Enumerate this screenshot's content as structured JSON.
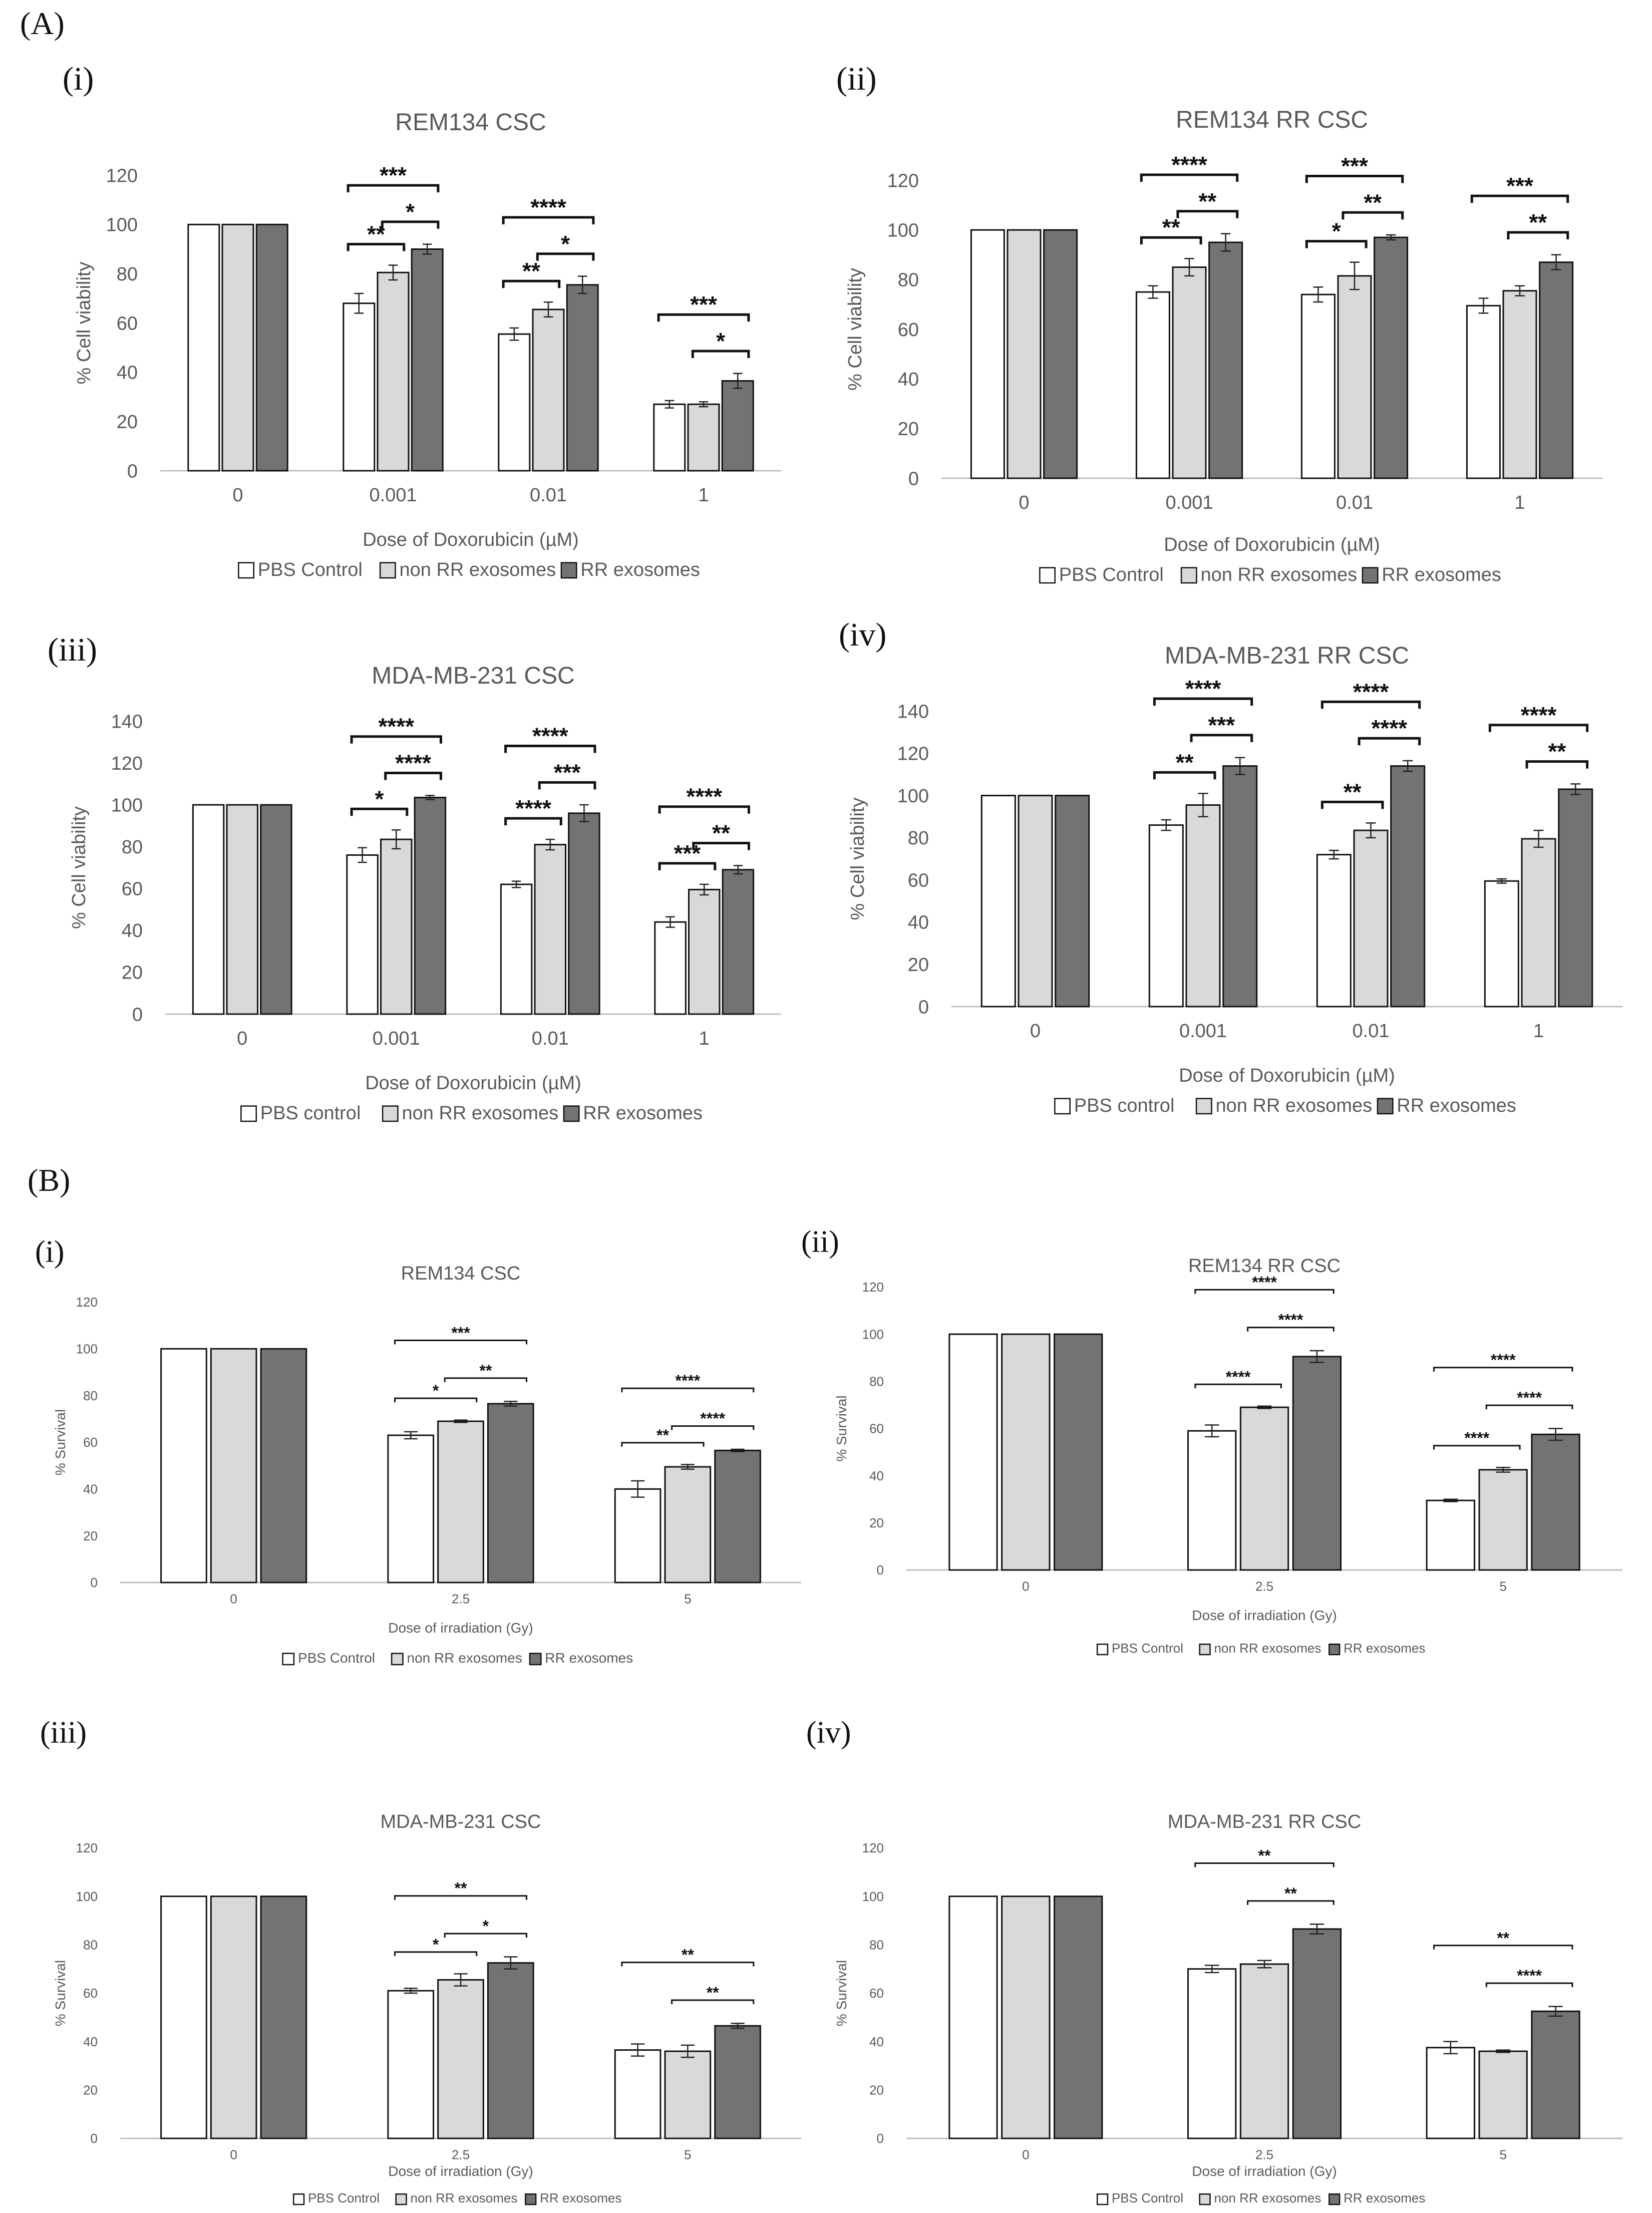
{
  "sections": [
    {
      "label": "(A)"
    },
    {
      "label": "(B)"
    }
  ],
  "colors": {
    "pbs": "#ffffff",
    "non_rr": "#d9d9d9",
    "rr": "#737373",
    "bar_stroke": "#111111",
    "axis": "#bfbfbf",
    "title": "#595959",
    "text": "#595959"
  },
  "chart_data": [
    {
      "panel": "(i)",
      "type": "bar",
      "title": "REM134 CSC",
      "xlabel": "Dose of Doxorubicin (µM)",
      "ylabel": "% Cell viability",
      "categories": [
        "0",
        "0.001",
        "0.01",
        "1"
      ],
      "ylim": [
        0,
        120
      ],
      "yticks": [
        0,
        20,
        40,
        60,
        80,
        100,
        120
      ],
      "series": [
        {
          "name": "PBS Control",
          "values": [
            100,
            68,
            55.5,
            27
          ],
          "errors": [
            0,
            4,
            2.5,
            1.5
          ]
        },
        {
          "name": "non RR exosomes",
          "values": [
            100,
            80.5,
            65.5,
            27
          ],
          "errors": [
            0,
            3,
            3,
            1
          ]
        },
        {
          "name": "RR exosomes",
          "values": [
            100,
            90,
            75.5,
            36.5
          ],
          "errors": [
            0,
            2,
            3.5,
            3
          ]
        }
      ],
      "significance": [
        {
          "category": 1,
          "from": 0,
          "to": 2,
          "label": "***"
        },
        {
          "category": 1,
          "from": 0,
          "to": 1,
          "label": "**"
        },
        {
          "category": 1,
          "from": 1,
          "to": 2,
          "label": "*"
        },
        {
          "category": 2,
          "from": 0,
          "to": 2,
          "label": "****"
        },
        {
          "category": 2,
          "from": 0,
          "to": 1,
          "label": "**"
        },
        {
          "category": 2,
          "from": 1,
          "to": 2,
          "label": "*"
        },
        {
          "category": 3,
          "from": 0,
          "to": 2,
          "label": "***"
        },
        {
          "category": 3,
          "from": 1,
          "to": 2,
          "label": "*"
        }
      ]
    },
    {
      "panel": "(ii)",
      "type": "bar",
      "title": "REM134 RR CSC",
      "xlabel": "Dose of Doxorubicin (µM)",
      "ylabel": "% Cell viability",
      "categories": [
        "0",
        "0.001",
        "0.01",
        "1"
      ],
      "ylim": [
        0,
        120
      ],
      "yticks": [
        0,
        20,
        40,
        60,
        80,
        100,
        120
      ],
      "series": [
        {
          "name": "PBS Control",
          "values": [
            100,
            75,
            74,
            69.5
          ],
          "errors": [
            0,
            2.5,
            3,
            3
          ]
        },
        {
          "name": "non RR exosomes",
          "values": [
            100,
            85,
            81.5,
            75.5
          ],
          "errors": [
            0,
            3.5,
            5.5,
            2
          ]
        },
        {
          "name": "RR exosomes",
          "values": [
            100,
            95,
            97,
            87
          ],
          "errors": [
            0,
            3.5,
            1,
            3
          ]
        }
      ],
      "significance": [
        {
          "category": 1,
          "from": 0,
          "to": 2,
          "label": "****"
        },
        {
          "category": 1,
          "from": 0,
          "to": 1,
          "label": "**"
        },
        {
          "category": 1,
          "from": 1,
          "to": 2,
          "label": "**"
        },
        {
          "category": 2,
          "from": 0,
          "to": 2,
          "label": "***"
        },
        {
          "category": 2,
          "from": 0,
          "to": 1,
          "label": "*"
        },
        {
          "category": 2,
          "from": 1,
          "to": 2,
          "label": "**"
        },
        {
          "category": 3,
          "from": 0,
          "to": 2,
          "label": "***"
        },
        {
          "category": 3,
          "from": 1,
          "to": 2,
          "label": "**"
        }
      ]
    },
    {
      "panel": "(iii)",
      "type": "bar",
      "title": "MDA-MB-231 CSC",
      "xlabel": "Dose of Doxorubicin (µM)",
      "ylabel": "% Cell viability",
      "categories": [
        "0",
        "0.001",
        "0.01",
        "1"
      ],
      "ylim": [
        0,
        140
      ],
      "yticks": [
        0,
        20,
        40,
        60,
        80,
        100,
        120,
        140
      ],
      "series": [
        {
          "name": "PBS control",
          "values": [
            100,
            76,
            62,
            44
          ],
          "errors": [
            0,
            3.5,
            1.5,
            2.5
          ]
        },
        {
          "name": "non RR exosomes",
          "values": [
            100,
            83.5,
            81,
            59.5
          ],
          "errors": [
            0,
            4.5,
            2.5,
            2.5
          ]
        },
        {
          "name": "RR exosomes",
          "values": [
            100,
            103.5,
            96,
            69
          ],
          "errors": [
            0,
            1,
            4,
            2
          ]
        }
      ],
      "significance": [
        {
          "category": 1,
          "from": 0,
          "to": 2,
          "label": "****"
        },
        {
          "category": 1,
          "from": 0,
          "to": 1,
          "label": "*"
        },
        {
          "category": 1,
          "from": 1,
          "to": 2,
          "label": "****"
        },
        {
          "category": 2,
          "from": 0,
          "to": 2,
          "label": "****"
        },
        {
          "category": 2,
          "from": 0,
          "to": 1,
          "label": "****"
        },
        {
          "category": 2,
          "from": 1,
          "to": 2,
          "label": "***"
        },
        {
          "category": 3,
          "from": 0,
          "to": 2,
          "label": "****"
        },
        {
          "category": 3,
          "from": 0,
          "to": 1,
          "label": "***"
        },
        {
          "category": 3,
          "from": 1,
          "to": 2,
          "label": "**"
        }
      ]
    },
    {
      "panel": "(iv)",
      "type": "bar",
      "title": "MDA-MB-231 RR CSC",
      "xlabel": "Dose of Doxorubicin (µM)",
      "ylabel": "% Cell viability",
      "categories": [
        "0",
        "0.001",
        "0.01",
        "1"
      ],
      "ylim": [
        0,
        140
      ],
      "yticks": [
        0,
        20,
        40,
        60,
        80,
        100,
        120,
        140
      ],
      "series": [
        {
          "name": "PBS control",
          "values": [
            100,
            86,
            72,
            59.5
          ],
          "errors": [
            0,
            2.5,
            2,
            1
          ]
        },
        {
          "name": "non RR exosomes",
          "values": [
            100,
            95.5,
            83.5,
            79.5
          ],
          "errors": [
            0,
            5.5,
            3.5,
            4
          ]
        },
        {
          "name": "RR exosomes",
          "values": [
            100,
            114,
            114,
            103
          ],
          "errors": [
            0,
            4,
            2.5,
            2.5
          ]
        }
      ],
      "significance": [
        {
          "category": 1,
          "from": 0,
          "to": 2,
          "label": "****"
        },
        {
          "category": 1,
          "from": 0,
          "to": 1,
          "label": "**"
        },
        {
          "category": 1,
          "from": 1,
          "to": 2,
          "label": "***"
        },
        {
          "category": 2,
          "from": 0,
          "to": 2,
          "label": "****"
        },
        {
          "category": 2,
          "from": 0,
          "to": 1,
          "label": "**"
        },
        {
          "category": 2,
          "from": 1,
          "to": 2,
          "label": "****"
        },
        {
          "category": 3,
          "from": 0,
          "to": 2,
          "label": "****"
        },
        {
          "category": 3,
          "from": 1,
          "to": 2,
          "label": "**"
        }
      ]
    },
    {
      "panel": "(i)",
      "type": "bar",
      "title": "REM134 CSC",
      "xlabel": "Dose of irradiation (Gy)",
      "ylabel": "% Survival",
      "categories": [
        "0",
        "2.5",
        "5"
      ],
      "ylim": [
        0,
        120
      ],
      "yticks": [
        0,
        20,
        40,
        60,
        80,
        100,
        120
      ],
      "series": [
        {
          "name": "PBS Control",
          "values": [
            100,
            63,
            40
          ],
          "errors": [
            0,
            1.5,
            3.5
          ]
        },
        {
          "name": "non RR exosomes",
          "values": [
            100,
            69,
            49.5
          ],
          "errors": [
            0,
            0.5,
            1
          ]
        },
        {
          "name": "RR exosomes",
          "values": [
            100,
            76.5,
            56.5
          ],
          "errors": [
            0,
            1,
            0.5
          ]
        }
      ],
      "significance": [
        {
          "category": 1,
          "from": 0,
          "to": 2,
          "label": "***"
        },
        {
          "category": 1,
          "from": 0,
          "to": 1,
          "label": "*"
        },
        {
          "category": 1,
          "from": 1,
          "to": 2,
          "label": "**"
        },
        {
          "category": 2,
          "from": 0,
          "to": 2,
          "label": "****"
        },
        {
          "category": 2,
          "from": 0,
          "to": 1,
          "label": "**"
        },
        {
          "category": 2,
          "from": 1,
          "to": 2,
          "label": "****"
        }
      ]
    },
    {
      "panel": "(ii)",
      "type": "bar",
      "title": "REM134 RR CSC",
      "xlabel": "Dose of irradiation (Gy)",
      "ylabel": "% Survival",
      "categories": [
        "0",
        "2.5",
        "5"
      ],
      "ylim": [
        0,
        120
      ],
      "yticks": [
        0,
        20,
        40,
        60,
        80,
        100,
        120
      ],
      "series": [
        {
          "name": "PBS Control",
          "values": [
            100,
            59,
            29.5
          ],
          "errors": [
            0,
            2.5,
            0.5
          ]
        },
        {
          "name": "non RR exosomes",
          "values": [
            100,
            69,
            42.5
          ],
          "errors": [
            0,
            0.5,
            1
          ]
        },
        {
          "name": "RR exosomes",
          "values": [
            100,
            90.5,
            57.5
          ],
          "errors": [
            0,
            2.5,
            2.5
          ]
        }
      ],
      "significance": [
        {
          "category": 1,
          "from": 0,
          "to": 2,
          "label": "****"
        },
        {
          "category": 1,
          "from": 0,
          "to": 1,
          "label": "****"
        },
        {
          "category": 1,
          "from": 1,
          "to": 2,
          "label": "****"
        },
        {
          "category": 2,
          "from": 0,
          "to": 2,
          "label": "****"
        },
        {
          "category": 2,
          "from": 0,
          "to": 1,
          "label": "****"
        },
        {
          "category": 2,
          "from": 1,
          "to": 2,
          "label": "****"
        }
      ]
    },
    {
      "panel": "(iii)",
      "type": "bar",
      "title": "MDA-MB-231 CSC",
      "xlabel": "Dose of irradiation (Gy)",
      "ylabel": "% Survival",
      "categories": [
        "0",
        "2.5",
        "5"
      ],
      "ylim": [
        0,
        120
      ],
      "yticks": [
        0,
        20,
        40,
        60,
        80,
        100,
        120
      ],
      "series": [
        {
          "name": "PBS Control",
          "values": [
            100,
            61,
            36.5
          ],
          "errors": [
            0,
            1,
            2.5
          ]
        },
        {
          "name": "non RR exosomes",
          "values": [
            100,
            65.5,
            36
          ],
          "errors": [
            0,
            2.5,
            2.5
          ]
        },
        {
          "name": "RR exosomes",
          "values": [
            100,
            72.5,
            46.5
          ],
          "errors": [
            0,
            2.5,
            1
          ]
        }
      ],
      "significance": [
        {
          "category": 1,
          "from": 0,
          "to": 2,
          "label": "**"
        },
        {
          "category": 1,
          "from": 0,
          "to": 1,
          "label": "*"
        },
        {
          "category": 1,
          "from": 1,
          "to": 2,
          "label": "*"
        },
        {
          "category": 2,
          "from": 0,
          "to": 2,
          "label": "**"
        },
        {
          "category": 2,
          "from": 1,
          "to": 2,
          "label": "**"
        }
      ]
    },
    {
      "panel": "(iv)",
      "type": "bar",
      "title": "MDA-MB-231 RR CSC",
      "xlabel": "Dose of irradiation (Gy)",
      "ylabel": "% Survival",
      "categories": [
        "0",
        "2.5",
        "5"
      ],
      "ylim": [
        0,
        120
      ],
      "yticks": [
        0,
        20,
        40,
        60,
        80,
        100,
        120
      ],
      "series": [
        {
          "name": "PBS Control",
          "values": [
            100,
            70,
            37.5
          ],
          "errors": [
            0,
            1.5,
            2.5
          ]
        },
        {
          "name": "non RR exosomes",
          "values": [
            100,
            72,
            36
          ],
          "errors": [
            0,
            1.5,
            0.5
          ]
        },
        {
          "name": "RR exosomes",
          "values": [
            100,
            86.5,
            52.5
          ],
          "errors": [
            0,
            2,
            2
          ]
        }
      ],
      "significance": [
        {
          "category": 1,
          "from": 0,
          "to": 2,
          "label": "**"
        },
        {
          "category": 1,
          "from": 1,
          "to": 2,
          "label": "**"
        },
        {
          "category": 2,
          "from": 0,
          "to": 2,
          "label": "**"
        },
        {
          "category": 2,
          "from": 1,
          "to": 2,
          "label": "****"
        }
      ]
    }
  ]
}
